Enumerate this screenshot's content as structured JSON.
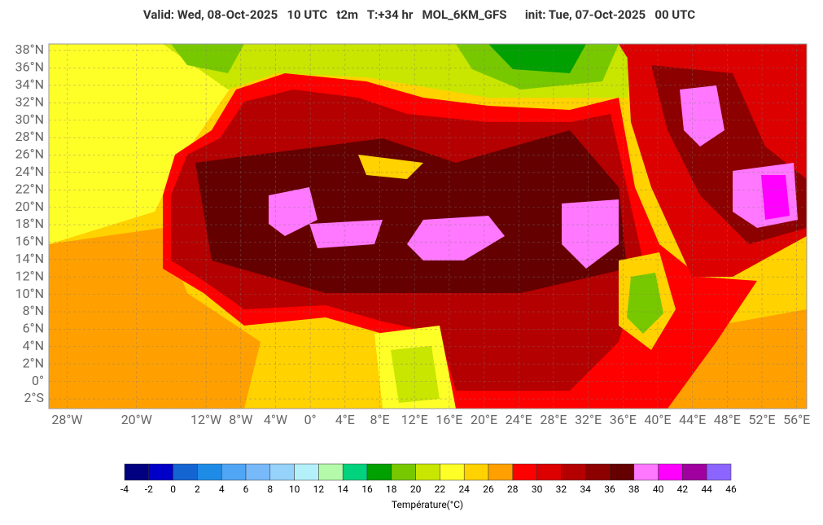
{
  "header": {
    "title": "Valid: Wed, 08-Oct-2025   10 UTC   t2m   T:+34 hr   MOL_6KM_GFS      init: Tue, 07-Oct-2025   00 UTC"
  },
  "map": {
    "lat_ticks": [
      {
        "value": 38,
        "label": "38°N"
      },
      {
        "value": 36,
        "label": "36°N"
      },
      {
        "value": 34,
        "label": "34°N"
      },
      {
        "value": 32,
        "label": "32°N"
      },
      {
        "value": 30,
        "label": "30°N"
      },
      {
        "value": 28,
        "label": "28°N"
      },
      {
        "value": 26,
        "label": "26°N"
      },
      {
        "value": 24,
        "label": "24°N"
      },
      {
        "value": 22,
        "label": "22°N"
      },
      {
        "value": 20,
        "label": "20°N"
      },
      {
        "value": 18,
        "label": "18°N"
      },
      {
        "value": 16,
        "label": "16°N"
      },
      {
        "value": 14,
        "label": "14°N"
      },
      {
        "value": 12,
        "label": "12°N"
      },
      {
        "value": 10,
        "label": "10°N"
      },
      {
        "value": 8,
        "label": "8°N"
      },
      {
        "value": 6,
        "label": "6°N"
      },
      {
        "value": 4,
        "label": "4°N"
      },
      {
        "value": 2,
        "label": "2°N"
      },
      {
        "value": 0,
        "label": "0°"
      },
      {
        "value": -2,
        "label": "2°S"
      }
    ],
    "lon_ticks": [
      {
        "value": -28,
        "label": "28°W"
      },
      {
        "value": -20,
        "label": "20°W"
      },
      {
        "value": -12,
        "label": "12°W"
      },
      {
        "value": -8,
        "label": "8°W"
      },
      {
        "value": -4,
        "label": "4°W"
      },
      {
        "value": 0,
        "label": "0°"
      },
      {
        "value": 4,
        "label": "4°E"
      },
      {
        "value": 8,
        "label": "8°E"
      },
      {
        "value": 12,
        "label": "12°E"
      },
      {
        "value": 16,
        "label": "16°E"
      },
      {
        "value": 20,
        "label": "20°E"
      },
      {
        "value": 24,
        "label": "24°E"
      },
      {
        "value": 28,
        "label": "28°E"
      },
      {
        "value": 32,
        "label": "32°E"
      },
      {
        "value": 36,
        "label": "36°E"
      },
      {
        "value": 40,
        "label": "40°E"
      },
      {
        "value": 44,
        "label": "44°E"
      },
      {
        "value": 48,
        "label": "48°E"
      },
      {
        "value": 52,
        "label": "52°E"
      },
      {
        "value": 56,
        "label": "56°E"
      }
    ]
  },
  "colorbar": {
    "ticks": [
      -4,
      -2,
      0,
      2,
      4,
      6,
      8,
      10,
      12,
      14,
      16,
      18,
      20,
      22,
      24,
      26,
      28,
      30,
      32,
      34,
      36,
      38,
      40,
      42,
      44,
      46
    ],
    "colors": [
      "#000080",
      "#0000c8",
      "#1464d2",
      "#1e8ce6",
      "#50a5f5",
      "#78b9fa",
      "#96d2fa",
      "#b4f0fa",
      "#b4faaa",
      "#00d27d",
      "#00a000",
      "#78c800",
      "#c8e600",
      "#ffff28",
      "#ffd200",
      "#ffa000",
      "#ff0000",
      "#dc0000",
      "#b40000",
      "#8c0000",
      "#640000",
      "#ff78ff",
      "#ff00ff",
      "#a000a0",
      "#8c64ff"
    ],
    "label": "Température(°C)"
  }
}
